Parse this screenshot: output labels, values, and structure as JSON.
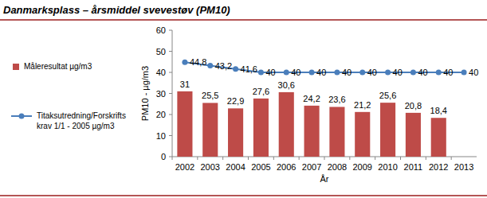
{
  "chart_data": {
    "type": "bar",
    "title": "Danmarksplass – årsmiddel svevestøv (PM10)",
    "x_label": "År",
    "y_label": "PM10 - µg/m3",
    "categories": [
      "2002",
      "2003",
      "2004",
      "2005",
      "2006",
      "2007",
      "2008",
      "2009",
      "2010",
      "2011",
      "2012",
      "2013"
    ],
    "series": [
      {
        "name": "Måleresultat µg/m3",
        "type": "bar",
        "color": "#be4b48",
        "values": [
          31,
          25.5,
          22.9,
          27.6,
          30.6,
          24.2,
          23.6,
          21.2,
          25.6,
          20.8,
          18.4,
          null
        ],
        "value_labels": [
          "31",
          "25,5",
          "22,9",
          "27,6",
          "30,6",
          "24,2",
          "23,6",
          "21,2",
          "25,6",
          "20,8",
          "18,4",
          null
        ]
      },
      {
        "name": "Titaksutredning/Forskrifts krav 1/1 - 2005 µg/m3",
        "type": "line",
        "color": "#4a7ebb",
        "marker": "circle",
        "values": [
          44.8,
          43.2,
          41.6,
          40,
          40,
          40,
          40,
          40,
          40,
          40,
          40,
          40
        ],
        "value_labels": [
          "44,8",
          "43,2",
          "41,6",
          "40",
          "40",
          "40",
          "40",
          "40",
          "40",
          "40",
          "40",
          "40"
        ]
      }
    ],
    "ylim": [
      0,
      60
    ],
    "yticks": [
      0,
      10,
      20,
      30,
      40,
      50,
      60
    ],
    "grid": false,
    "legend": "left",
    "data_labels": true
  }
}
